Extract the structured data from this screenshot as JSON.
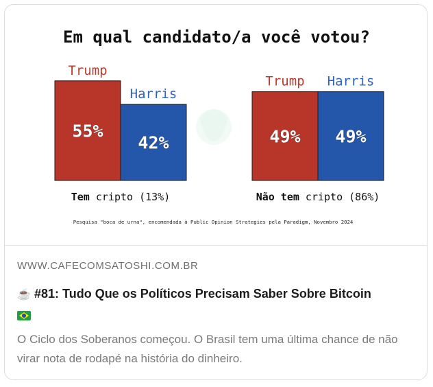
{
  "chart_data": {
    "type": "bar",
    "title": "Em qual candidato/a você votou?",
    "groups": [
      {
        "label_bold": "Tem",
        "label_rest": " cripto (13%)",
        "bars": [
          {
            "name": "Trump",
            "value": 55,
            "label": "55%",
            "color": "#b73629"
          },
          {
            "name": "Harris",
            "value": 42,
            "label": "42%",
            "color": "#2457a9"
          }
        ]
      },
      {
        "label_bold": "Não tem",
        "label_rest": " cripto (86%)",
        "bars": [
          {
            "name": "Trump",
            "value": 49,
            "label": "49%",
            "color": "#b73629"
          },
          {
            "name": "Harris",
            "value": 49,
            "label": "49%",
            "color": "#2457a9"
          }
        ]
      }
    ],
    "name_colors": {
      "Trump": "#c0392b",
      "Harris": "#2e63c2"
    },
    "source_note": "Pesquisa \"boca de urna\", encomendada à Public Opinion Strategies pela Paradigm, Novembro 2024"
  },
  "link_card": {
    "domain": "WWW.CAFECOMSATOSHI.COM.BR",
    "title_icon": "coffee-icon",
    "title": "#81: Tudo Que os Políticos Precisam Saber Sobre Bitcoin",
    "title_flag": "brazil-flag-icon",
    "description": "O Ciclo dos Soberanos começou. O Brasil tem uma última chance de não virar nota de rodapé na história do dinheiro."
  }
}
